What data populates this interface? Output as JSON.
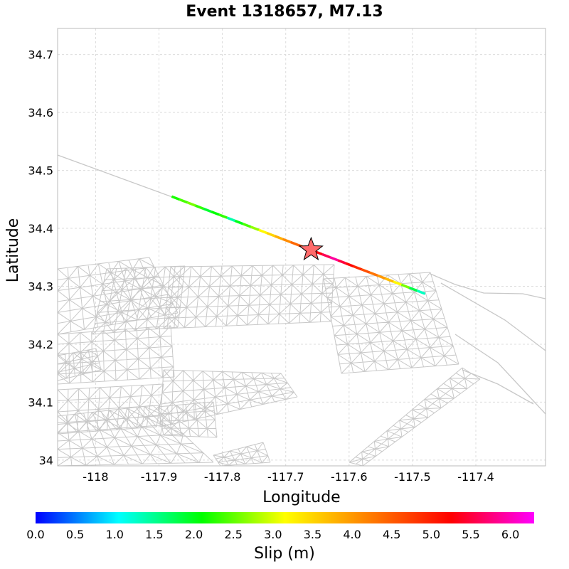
{
  "chart_data": {
    "type": "scatter",
    "title": "Event 1318657, M7.13",
    "xlabel": "Longitude",
    "ylabel": "Latitude",
    "xlim": [
      -118.06,
      -117.29
    ],
    "ylim": [
      33.99,
      34.745
    ],
    "xticks": [
      -118,
      -117.9,
      -117.8,
      -117.7,
      -117.6,
      -117.5,
      -117.4
    ],
    "yticks": [
      34,
      34.1,
      34.2,
      34.3,
      34.4,
      34.5,
      34.6,
      34.7
    ],
    "grid": true,
    "hypocenter": {
      "lon": -117.66,
      "lat": 34.363,
      "marker": "star",
      "color": "#ff6b6b"
    },
    "rupture": {
      "start": {
        "lon": -117.88,
        "lat": 34.455
      },
      "end": {
        "lon": -117.48,
        "lat": 34.287
      },
      "slip_m": [
        2.2,
        2.4,
        2.6,
        2.3,
        1.9,
        2.1,
        2.3,
        1.4,
        2.0,
        2.4,
        2.7,
        3.2,
        3.5,
        3.8,
        4.1,
        4.4,
        4.6,
        5.0,
        5.3,
        5.6,
        5.9,
        5.5,
        5.2,
        4.9,
        4.6,
        4.3,
        4.0,
        3.7,
        3.2,
        2.6,
        1.8,
        1.3
      ]
    },
    "colorbar": {
      "label": "Slip (m)",
      "ticks": [
        "0.0",
        "0.5",
        "1.0",
        "1.5",
        "2.0",
        "2.5",
        "3.0",
        "3.5",
        "4.0",
        "4.5",
        "5.0",
        "5.5",
        "6.0"
      ],
      "min": 0,
      "max": 6.3,
      "colormap": [
        "#0000ff",
        "#00ffff",
        "#00ff00",
        "#ffff00",
        "#ff8000",
        "#ff0000",
        "#ff00ff"
      ]
    },
    "colors": {
      "background_faults": "#c8c8c8",
      "grid": "#dcdcdc"
    }
  }
}
